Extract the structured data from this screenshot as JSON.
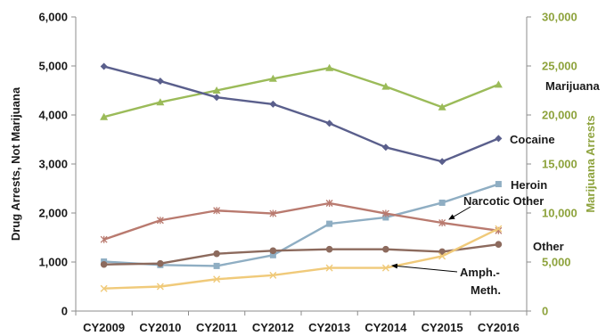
{
  "chart_data": {
    "type": "line",
    "categories": [
      "CY2009",
      "CY2010",
      "CY2011",
      "CY2012",
      "CY2013",
      "CY2014",
      "CY2015",
      "CY2016"
    ],
    "ylabel": "Drug Arrests, Not Marijuana",
    "y2label": "Marijuana Arrests",
    "ylim": [
      0,
      6000
    ],
    "y2lim": [
      0,
      30000
    ],
    "yticks": [
      "0",
      "1,000",
      "2,000",
      "3,000",
      "4,000",
      "5,000",
      "6,000"
    ],
    "y2ticks": [
      "0",
      "5,000",
      "10,000",
      "15,000",
      "20,000",
      "25,000",
      "30,000"
    ],
    "grid": false,
    "series": [
      {
        "name": "Marijuana",
        "axis": "right",
        "color": "#9bbb59",
        "marker": "triangle",
        "values": [
          19800,
          21300,
          22500,
          23700,
          24800,
          22900,
          20800,
          23100
        ]
      },
      {
        "name": "Cocaine",
        "axis": "left",
        "color": "#5a5f8c",
        "marker": "diamond",
        "values": [
          4990,
          4690,
          4360,
          4220,
          3830,
          3340,
          3050,
          3520
        ]
      },
      {
        "name": "Heroin",
        "axis": "left",
        "color": "#8faec3",
        "marker": "square",
        "values": [
          1010,
          940,
          920,
          1140,
          1780,
          1910,
          2210,
          2590
        ]
      },
      {
        "name": "Narcotic Other",
        "axis": "left",
        "color": "#b97a6f",
        "marker": "star",
        "values": [
          1460,
          1850,
          2050,
          1990,
          2200,
          1990,
          1800,
          1640
        ]
      },
      {
        "name": "Other",
        "axis": "left",
        "color": "#8c6a5d",
        "marker": "circle",
        "values": [
          950,
          970,
          1170,
          1230,
          1260,
          1260,
          1210,
          1360
        ]
      },
      {
        "name": "Amph.-\nMeth.",
        "axis": "left",
        "color": "#f0ca7a",
        "marker": "x",
        "values": [
          460,
          500,
          650,
          730,
          880,
          880,
          1120,
          1680
        ]
      }
    ],
    "label_color_right": "#8ea33d"
  }
}
